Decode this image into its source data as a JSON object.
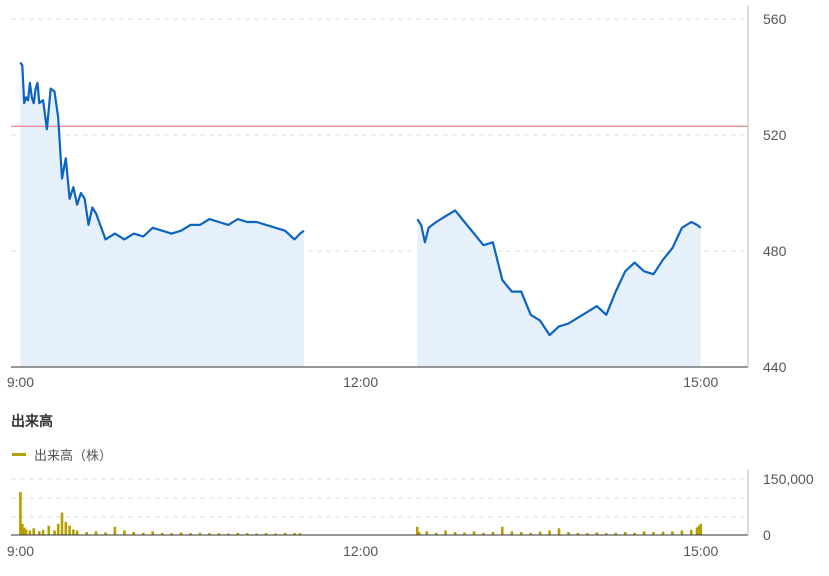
{
  "colors": {
    "price_line": "#0b64c0",
    "price_area": "#e6f0fa",
    "reference_line": "#e87b86",
    "volume_bar": "#b3a000",
    "grid": "#dddddd",
    "axis": "#333333"
  },
  "volume_section": {
    "title": "出来高",
    "legend_label": "出来高（株）"
  },
  "chart_data": [
    {
      "type": "line",
      "title": "",
      "xlabel": "",
      "ylabel": "",
      "x_ticks": [
        "9:00",
        "12:00",
        "15:00"
      ],
      "x_range": [
        "8:55",
        "15:25"
      ],
      "y_ticks": [
        440,
        480,
        520,
        560
      ],
      "ylim": [
        440,
        560
      ],
      "y_axis_position": "right",
      "grid": true,
      "area_fill": true,
      "reference_line": 523,
      "sessions": [
        {
          "x": [
            "9:00",
            "9:01",
            "9:02",
            "9:03",
            "9:04",
            "9:05",
            "9:06",
            "9:07",
            "9:08",
            "9:09",
            "9:10",
            "9:12",
            "9:14",
            "9:16",
            "9:18",
            "9:20",
            "9:22",
            "9:24",
            "9:26",
            "9:28",
            "9:30",
            "9:32",
            "9:34",
            "9:36",
            "9:38",
            "9:40",
            "9:45",
            "9:50",
            "9:55",
            "10:00",
            "10:05",
            "10:10",
            "10:15",
            "10:20",
            "10:25",
            "10:30",
            "10:35",
            "10:40",
            "10:45",
            "10:50",
            "10:55",
            "11:00",
            "11:05",
            "11:10",
            "11:15",
            "11:20",
            "11:25",
            "11:28",
            "11:30"
          ],
          "y": [
            545,
            544,
            531,
            533,
            532,
            538,
            533,
            531,
            536,
            538,
            531,
            532,
            522,
            536,
            535,
            526,
            505,
            512,
            498,
            502,
            496,
            500,
            498,
            489,
            495,
            493,
            484,
            486,
            484,
            486,
            485,
            488,
            487,
            486,
            487,
            489,
            489,
            491,
            490,
            489,
            491,
            490,
            490,
            489,
            488,
            487,
            484,
            486,
            487
          ]
        },
        {
          "x": [
            "12:30",
            "12:32",
            "12:34",
            "12:36",
            "12:40",
            "12:45",
            "12:50",
            "12:55",
            "13:00",
            "13:05",
            "13:10",
            "13:15",
            "13:20",
            "13:25",
            "13:30",
            "13:35",
            "13:40",
            "13:45",
            "13:50",
            "13:55",
            "14:00",
            "14:05",
            "14:10",
            "14:15",
            "14:20",
            "14:25",
            "14:30",
            "14:35",
            "14:40",
            "14:45",
            "14:50",
            "14:55",
            "14:58",
            "15:00"
          ],
          "y": [
            491,
            489,
            483,
            488,
            490,
            492,
            494,
            490,
            486,
            482,
            483,
            470,
            466,
            466,
            458,
            456,
            451,
            454,
            455,
            457,
            459,
            461,
            458,
            466,
            473,
            476,
            473,
            472,
            477,
            481,
            488,
            490,
            489,
            488
          ]
        }
      ]
    },
    {
      "type": "bar",
      "title": "",
      "xlabel": "",
      "ylabel": "",
      "x_ticks": [
        "9:00",
        "12:00",
        "15:00"
      ],
      "y_ticks": [
        "0",
        "150,000"
      ],
      "ylim": [
        0,
        150000
      ],
      "y_axis_position": "right",
      "grid": true,
      "sessions": [
        {
          "x": [
            "9:00",
            "9:01",
            "9:02",
            "9:03",
            "9:05",
            "9:07",
            "9:10",
            "9:12",
            "9:15",
            "9:18",
            "9:20",
            "9:22",
            "9:24",
            "9:26",
            "9:28",
            "9:30",
            "9:35",
            "9:40",
            "9:45",
            "9:50",
            "9:55",
            "10:00",
            "10:05",
            "10:10",
            "10:15",
            "10:20",
            "10:25",
            "10:30",
            "10:35",
            "10:40",
            "10:45",
            "10:50",
            "10:55",
            "11:00",
            "11:05",
            "11:10",
            "11:15",
            "11:20",
            "11:25",
            "11:28"
          ],
          "values": [
            115000,
            30000,
            20000,
            15000,
            12000,
            18000,
            10000,
            14000,
            25000,
            12000,
            30000,
            60000,
            35000,
            25000,
            15000,
            12000,
            8000,
            10000,
            7000,
            22000,
            12000,
            8000,
            6000,
            10000,
            6000,
            5000,
            7000,
            5000,
            6000,
            5000,
            5000,
            4000,
            6000,
            5000,
            4000,
            5000,
            4000,
            6000,
            5000,
            5000
          ]
        },
        {
          "x": [
            "12:30",
            "12:31",
            "12:35",
            "12:40",
            "12:45",
            "12:50",
            "12:55",
            "13:00",
            "13:05",
            "13:10",
            "13:15",
            "13:20",
            "13:25",
            "13:30",
            "13:35",
            "13:40",
            "13:45",
            "13:50",
            "13:55",
            "14:00",
            "14:05",
            "14:10",
            "14:15",
            "14:20",
            "14:25",
            "14:30",
            "14:35",
            "14:40",
            "14:45",
            "14:50",
            "14:55",
            "14:58",
            "14:59",
            "15:00"
          ],
          "values": [
            22000,
            8000,
            10000,
            6000,
            12000,
            8000,
            7000,
            10000,
            6000,
            8000,
            22000,
            10000,
            8000,
            6000,
            9000,
            12000,
            18000,
            8000,
            6000,
            5000,
            7000,
            5000,
            6000,
            8000,
            6000,
            10000,
            8000,
            9000,
            10000,
            12000,
            14000,
            20000,
            25000,
            30000
          ]
        }
      ]
    }
  ]
}
